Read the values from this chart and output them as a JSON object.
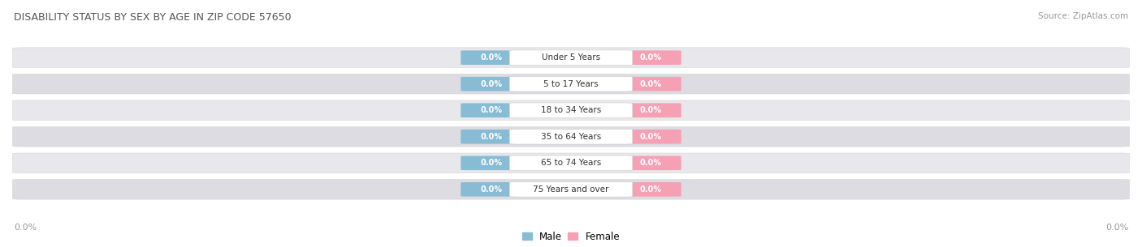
{
  "title": "DISABILITY STATUS BY SEX BY AGE IN ZIP CODE 57650",
  "source": "Source: ZipAtlas.com",
  "categories": [
    "Under 5 Years",
    "5 to 17 Years",
    "18 to 34 Years",
    "35 to 64 Years",
    "65 to 74 Years",
    "75 Years and over"
  ],
  "male_values": [
    0.0,
    0.0,
    0.0,
    0.0,
    0.0,
    0.0
  ],
  "female_values": [
    0.0,
    0.0,
    0.0,
    0.0,
    0.0,
    0.0
  ],
  "male_color": "#88bcd4",
  "female_color": "#f5a0b5",
  "row_bg_color": "#e8e8ec",
  "row_bg_alt": "#dcdce2",
  "category_box_color": "#ffffff",
  "title_color": "#555555",
  "source_color": "#999999",
  "axis_label_color": "#999999",
  "legend_male": "Male",
  "legend_female": "Female"
}
